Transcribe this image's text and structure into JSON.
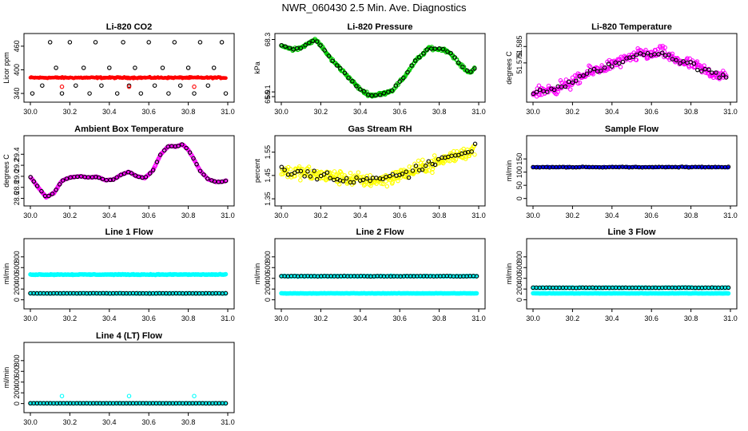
{
  "page": {
    "title": "NWR_060430  2.5 Min. Ave. Diagnostics"
  },
  "colors": {
    "axis": "#000000",
    "red": "#ff0000",
    "green": "#00cc00",
    "magenta": "#ff00ff",
    "yellow": "#ffff00",
    "blue": "#0000ff",
    "cyan": "#00ffff",
    "black": "#000000"
  },
  "chart_data": [
    {
      "id": "co2",
      "type": "scatter",
      "title": "Li-820 CO2",
      "ylabel": "Licor ppm",
      "xlim": [
        30.0,
        31.0
      ],
      "ylim": [
        330,
        480
      ],
      "xticks": [
        "30.0",
        "30.2",
        "30.4",
        "30.6",
        "30.8",
        "31.0"
      ],
      "yticks": [
        "340",
        "400",
        "460"
      ],
      "series": [
        {
          "name": "dense",
          "color": "red",
          "marker": "dot",
          "shape": "flat",
          "level": 380,
          "noise": 1.5,
          "n": 240,
          "x_range": [
            30.0,
            30.99
          ]
        },
        {
          "name": "points",
          "color": "black",
          "marker": "circle",
          "x": [
            30.01,
            30.06,
            30.1,
            30.13,
            30.16,
            30.2,
            30.23,
            30.27,
            30.3,
            30.33,
            30.36,
            30.4,
            30.44,
            30.47,
            30.5,
            30.53,
            30.56,
            30.6,
            30.63,
            30.67,
            30.7,
            30.73,
            30.76,
            30.8,
            30.83,
            30.86,
            30.9,
            30.93,
            30.97,
            30.99
          ],
          "y": [
            340,
            360,
            470,
            405,
            340,
            470,
            360,
            405,
            340,
            470,
            360,
            405,
            340,
            470,
            360,
            405,
            340,
            470,
            360,
            405,
            340,
            470,
            360,
            405,
            340,
            470,
            360,
            405,
            470,
            340
          ]
        },
        {
          "name": "low",
          "color": "red",
          "marker": "circle",
          "x": [
            30.16,
            30.5,
            30.83
          ],
          "y": [
            357,
            357,
            357
          ]
        }
      ]
    },
    {
      "id": "pressure",
      "type": "scatter",
      "title": "Li-820 Pressure",
      "ylabel": "kPa",
      "xlim": [
        30.0,
        31.0
      ],
      "ylim": [
        65.87,
        68.35
      ],
      "xticks": [
        "30.0",
        "30.2",
        "30.4",
        "30.6",
        "30.8",
        "31.0"
      ],
      "yticks": [
        "65.9",
        "66.1",
        "68.3"
      ],
      "series": [
        {
          "name": "dense",
          "color": "green",
          "marker": "circle",
          "shape": "path",
          "noise": 0.05,
          "n": 240,
          "x": [
            30.0,
            30.05,
            30.1,
            30.13,
            30.17,
            30.2,
            30.25,
            30.32,
            30.4,
            30.45,
            30.5,
            30.56,
            30.62,
            30.68,
            30.75,
            30.78,
            30.82,
            30.86,
            30.9,
            30.95,
            30.98
          ],
          "y": [
            68.05,
            67.9,
            67.95,
            68.1,
            68.3,
            68.05,
            67.5,
            66.9,
            66.2,
            65.95,
            66.0,
            66.15,
            66.7,
            67.4,
            67.95,
            67.9,
            67.9,
            67.7,
            67.3,
            66.9,
            67.1
          ]
        },
        {
          "name": "avg",
          "color": "black",
          "marker": "circle",
          "shape": "path",
          "noise": 0.03,
          "n": 50,
          "x": [
            30.0,
            30.05,
            30.1,
            30.13,
            30.17,
            30.2,
            30.25,
            30.32,
            30.4,
            30.45,
            30.5,
            30.56,
            30.62,
            30.68,
            30.75,
            30.78,
            30.82,
            30.86,
            30.9,
            30.95,
            30.98
          ],
          "y": [
            68.05,
            67.9,
            67.95,
            68.1,
            68.3,
            68.05,
            67.5,
            66.9,
            66.2,
            65.95,
            66.0,
            66.15,
            66.7,
            67.4,
            67.95,
            67.9,
            67.9,
            67.7,
            67.3,
            66.9,
            67.1
          ]
        }
      ]
    },
    {
      "id": "li820temp",
      "type": "scatter",
      "title": "Li-820 Temperature",
      "ylabel": "degrees C",
      "xlim": [
        30.0,
        31.0
      ],
      "ylim": [
        51.554,
        51.59
      ],
      "xticks": [
        "30.0",
        "30.2",
        "30.4",
        "30.6",
        "30.8",
        "31.0"
      ],
      "yticks": [
        "51.575",
        "51.585"
      ],
      "series": [
        {
          "name": "dense",
          "color": "magenta",
          "marker": "circle",
          "shape": "path",
          "noise": 0.003,
          "n": 260,
          "x": [
            30.0,
            30.1,
            30.2,
            30.3,
            30.4,
            30.5,
            30.55,
            30.6,
            30.65,
            30.7,
            30.8,
            30.9,
            30.98
          ],
          "y": [
            51.557,
            51.559,
            51.563,
            51.57,
            51.574,
            51.578,
            51.581,
            51.58,
            51.582,
            51.578,
            51.574,
            51.569,
            51.566
          ]
        },
        {
          "name": "avg",
          "color": "black",
          "marker": "circle",
          "shape": "path",
          "noise": 0.0015,
          "n": 55,
          "x": [
            30.0,
            30.1,
            30.2,
            30.3,
            30.4,
            30.5,
            30.55,
            30.6,
            30.65,
            30.7,
            30.8,
            30.9,
            30.98
          ],
          "y": [
            51.557,
            51.559,
            51.563,
            51.57,
            51.574,
            51.578,
            51.581,
            51.58,
            51.582,
            51.578,
            51.574,
            51.569,
            51.566
          ]
        }
      ]
    },
    {
      "id": "ambient",
      "type": "scatter",
      "title": "Ambient Box Temperature",
      "ylabel": "degrees C",
      "xlim": [
        30.0,
        31.0
      ],
      "ylim": [
        28.55,
        29.65
      ],
      "xticks": [
        "30.0",
        "30.2",
        "30.4",
        "30.6",
        "30.8",
        "31.0"
      ],
      "yticks": [
        "28.6",
        "28.8",
        "29.0",
        "29.2",
        "29.4"
      ],
      "series": [
        {
          "name": "dense",
          "color": "magenta",
          "marker": "circle",
          "shape": "path",
          "noise": 0.005,
          "n": 260,
          "x": [
            30.0,
            30.04,
            30.08,
            30.12,
            30.16,
            30.2,
            30.25,
            30.3,
            30.34,
            30.38,
            30.42,
            30.46,
            30.5,
            30.54,
            30.58,
            30.62,
            30.66,
            30.7,
            30.74,
            30.77,
            30.8,
            30.83,
            30.86,
            30.9,
            30.94,
            30.97,
            30.99
          ],
          "y": [
            28.99,
            28.8,
            28.62,
            28.7,
            28.92,
            28.98,
            29.0,
            28.98,
            28.99,
            28.93,
            28.94,
            29.03,
            29.08,
            29.0,
            28.97,
            29.1,
            29.4,
            29.55,
            29.54,
            29.58,
            29.48,
            29.3,
            29.1,
            28.95,
            28.9,
            28.9,
            28.92
          ]
        },
        {
          "name": "avg",
          "color": "black",
          "marker": "circle",
          "shape": "path",
          "noise": 0.003,
          "n": 55,
          "x": [
            30.0,
            30.04,
            30.08,
            30.12,
            30.16,
            30.2,
            30.25,
            30.3,
            30.34,
            30.38,
            30.42,
            30.46,
            30.5,
            30.54,
            30.58,
            30.62,
            30.66,
            30.7,
            30.74,
            30.77,
            30.8,
            30.83,
            30.86,
            30.9,
            30.94,
            30.97,
            30.99
          ],
          "y": [
            28.99,
            28.8,
            28.62,
            28.7,
            28.92,
            28.98,
            29.0,
            28.98,
            28.99,
            28.93,
            28.94,
            29.03,
            29.08,
            29.0,
            28.97,
            29.1,
            29.4,
            29.55,
            29.54,
            29.58,
            29.48,
            29.3,
            29.1,
            28.95,
            28.9,
            28.9,
            28.92
          ]
        }
      ]
    },
    {
      "id": "rh",
      "type": "scatter",
      "title": "Gas Stream RH",
      "ylabel": "percent",
      "xlim": [
        30.0,
        31.0
      ],
      "ylim": [
        1.34,
        1.6
      ],
      "xticks": [
        "30.0",
        "30.2",
        "30.4",
        "30.6",
        "30.8",
        "31.0"
      ],
      "yticks": [
        "1.35",
        "1.45",
        "1.55"
      ],
      "series": [
        {
          "name": "dense",
          "color": "yellow",
          "marker": "circle",
          "shape": "path",
          "noise": 0.025,
          "n": 300,
          "x": [
            30.0,
            30.1,
            30.2,
            30.3,
            30.4,
            30.5,
            30.6,
            30.7,
            30.8,
            30.9,
            30.98
          ],
          "y": [
            1.47,
            1.46,
            1.45,
            1.44,
            1.43,
            1.43,
            1.45,
            1.48,
            1.51,
            1.54,
            1.56
          ]
        },
        {
          "name": "avg",
          "color": "black",
          "marker": "circle",
          "shape": "path",
          "noise": 0.018,
          "n": 60,
          "x": [
            30.0,
            30.1,
            30.2,
            30.3,
            30.4,
            30.5,
            30.6,
            30.7,
            30.8,
            30.9,
            30.98
          ],
          "y": [
            1.47,
            1.46,
            1.45,
            1.44,
            1.43,
            1.43,
            1.45,
            1.48,
            1.51,
            1.54,
            1.56
          ]
        }
      ]
    },
    {
      "id": "sample",
      "type": "scatter",
      "title": "Sample Flow",
      "ylabel": "ml/min",
      "xlim": [
        30.0,
        31.0
      ],
      "ylim": [
        -10,
        220
      ],
      "xticks": [
        "30.0",
        "30.2",
        "30.4",
        "30.6",
        "30.8",
        "31.0"
      ],
      "yticks": [
        "0",
        "50",
        "100",
        "150"
      ],
      "series": [
        {
          "name": "dense",
          "color": "blue",
          "marker": "dot",
          "shape": "flat",
          "level": 119,
          "noise": 1.5,
          "n": 240,
          "x_range": [
            30.0,
            30.99
          ]
        },
        {
          "name": "avg",
          "color": "black",
          "marker": "circle",
          "shape": "flat",
          "level": 119,
          "noise": 1,
          "n": 60,
          "x_range": [
            30.0,
            30.99
          ]
        }
      ]
    },
    {
      "id": "line1",
      "type": "scatter",
      "title": "Line 1 Flow",
      "ylabel": "ml/min",
      "xlim": [
        30.0,
        31.0
      ],
      "ylim": [
        -80,
        1050
      ],
      "xticks": [
        "30.0",
        "30.2",
        "30.4",
        "30.6",
        "30.8",
        "31.0"
      ],
      "yticks": [
        "0",
        "200",
        "400",
        "600",
        "800"
      ],
      "series": [
        {
          "name": "high",
          "color": "cyan",
          "marker": "circle",
          "shape": "flat",
          "level": 470,
          "noise": 6,
          "n": 240,
          "x_range": [
            30.0,
            30.99
          ]
        },
        {
          "name": "low",
          "color": "cyan",
          "marker": "circle",
          "shape": "flat",
          "level": 120,
          "noise": 3,
          "n": 240,
          "x_range": [
            30.0,
            30.99
          ]
        },
        {
          "name": "avg",
          "color": "black",
          "marker": "circle",
          "shape": "flat",
          "level": 120,
          "noise": 2,
          "n": 60,
          "x_range": [
            30.0,
            30.99
          ]
        }
      ]
    },
    {
      "id": "line2",
      "type": "scatter",
      "title": "Line 2 Flow",
      "ylabel": "ml/min",
      "xlim": [
        30.0,
        31.0
      ],
      "ylim": [
        -80,
        1050
      ],
      "xticks": [
        "30.0",
        "30.2",
        "30.4",
        "30.6",
        "30.8",
        "31.0"
      ],
      "yticks": [
        "0",
        "200",
        "400",
        "600",
        "800"
      ],
      "series": [
        {
          "name": "high",
          "color": "cyan",
          "marker": "circle",
          "shape": "flat",
          "level": 440,
          "noise": 6,
          "n": 240,
          "x_range": [
            30.0,
            30.99
          ]
        },
        {
          "name": "low",
          "color": "cyan",
          "marker": "circle",
          "shape": "flat",
          "level": 120,
          "noise": 3,
          "n": 240,
          "x_range": [
            30.0,
            30.99
          ]
        },
        {
          "name": "avg",
          "color": "black",
          "marker": "circle",
          "shape": "flat",
          "level": 440,
          "noise": 4,
          "n": 60,
          "x_range": [
            30.0,
            30.99
          ]
        }
      ]
    },
    {
      "id": "line3",
      "type": "scatter",
      "title": "Line 3 Flow",
      "ylabel": "ml/min",
      "xlim": [
        30.0,
        31.0
      ],
      "ylim": [
        -80,
        1050
      ],
      "xticks": [
        "30.0",
        "30.2",
        "30.4",
        "30.6",
        "30.8",
        "31.0"
      ],
      "yticks": [
        "0",
        "200",
        "400",
        "600",
        "800"
      ],
      "series": [
        {
          "name": "high",
          "color": "cyan",
          "marker": "circle",
          "shape": "flat",
          "level": 225,
          "noise": 5,
          "n": 240,
          "x_range": [
            30.0,
            30.99
          ]
        },
        {
          "name": "low",
          "color": "cyan",
          "marker": "circle",
          "shape": "flat",
          "level": 120,
          "noise": 3,
          "n": 240,
          "x_range": [
            30.0,
            30.99
          ]
        },
        {
          "name": "avg",
          "color": "black",
          "marker": "circle",
          "shape": "flat",
          "level": 225,
          "noise": 3,
          "n": 60,
          "x_range": [
            30.0,
            30.99
          ]
        }
      ]
    },
    {
      "id": "line4",
      "type": "scatter",
      "title": "Line 4 (LT) Flow",
      "ylabel": "ml/min",
      "xlim": [
        30.0,
        31.0
      ],
      "ylim": [
        -80,
        1050
      ],
      "xticks": [
        "30.0",
        "30.2",
        "30.4",
        "30.6",
        "30.8",
        "31.0"
      ],
      "yticks": [
        "0",
        "200",
        "400",
        "600",
        "800"
      ],
      "series": [
        {
          "name": "base",
          "color": "cyan",
          "marker": "circle",
          "shape": "flat",
          "level": 5,
          "noise": 2,
          "n": 240,
          "x_range": [
            30.0,
            30.99
          ]
        },
        {
          "name": "spikes",
          "color": "cyan",
          "marker": "circle",
          "x": [
            30.16,
            30.5,
            30.83
          ],
          "y": [
            140,
            140,
            140
          ]
        },
        {
          "name": "avg",
          "color": "black",
          "marker": "circle",
          "shape": "flat",
          "level": 5,
          "noise": 1,
          "n": 60,
          "x_range": [
            30.0,
            30.99
          ]
        }
      ]
    }
  ]
}
